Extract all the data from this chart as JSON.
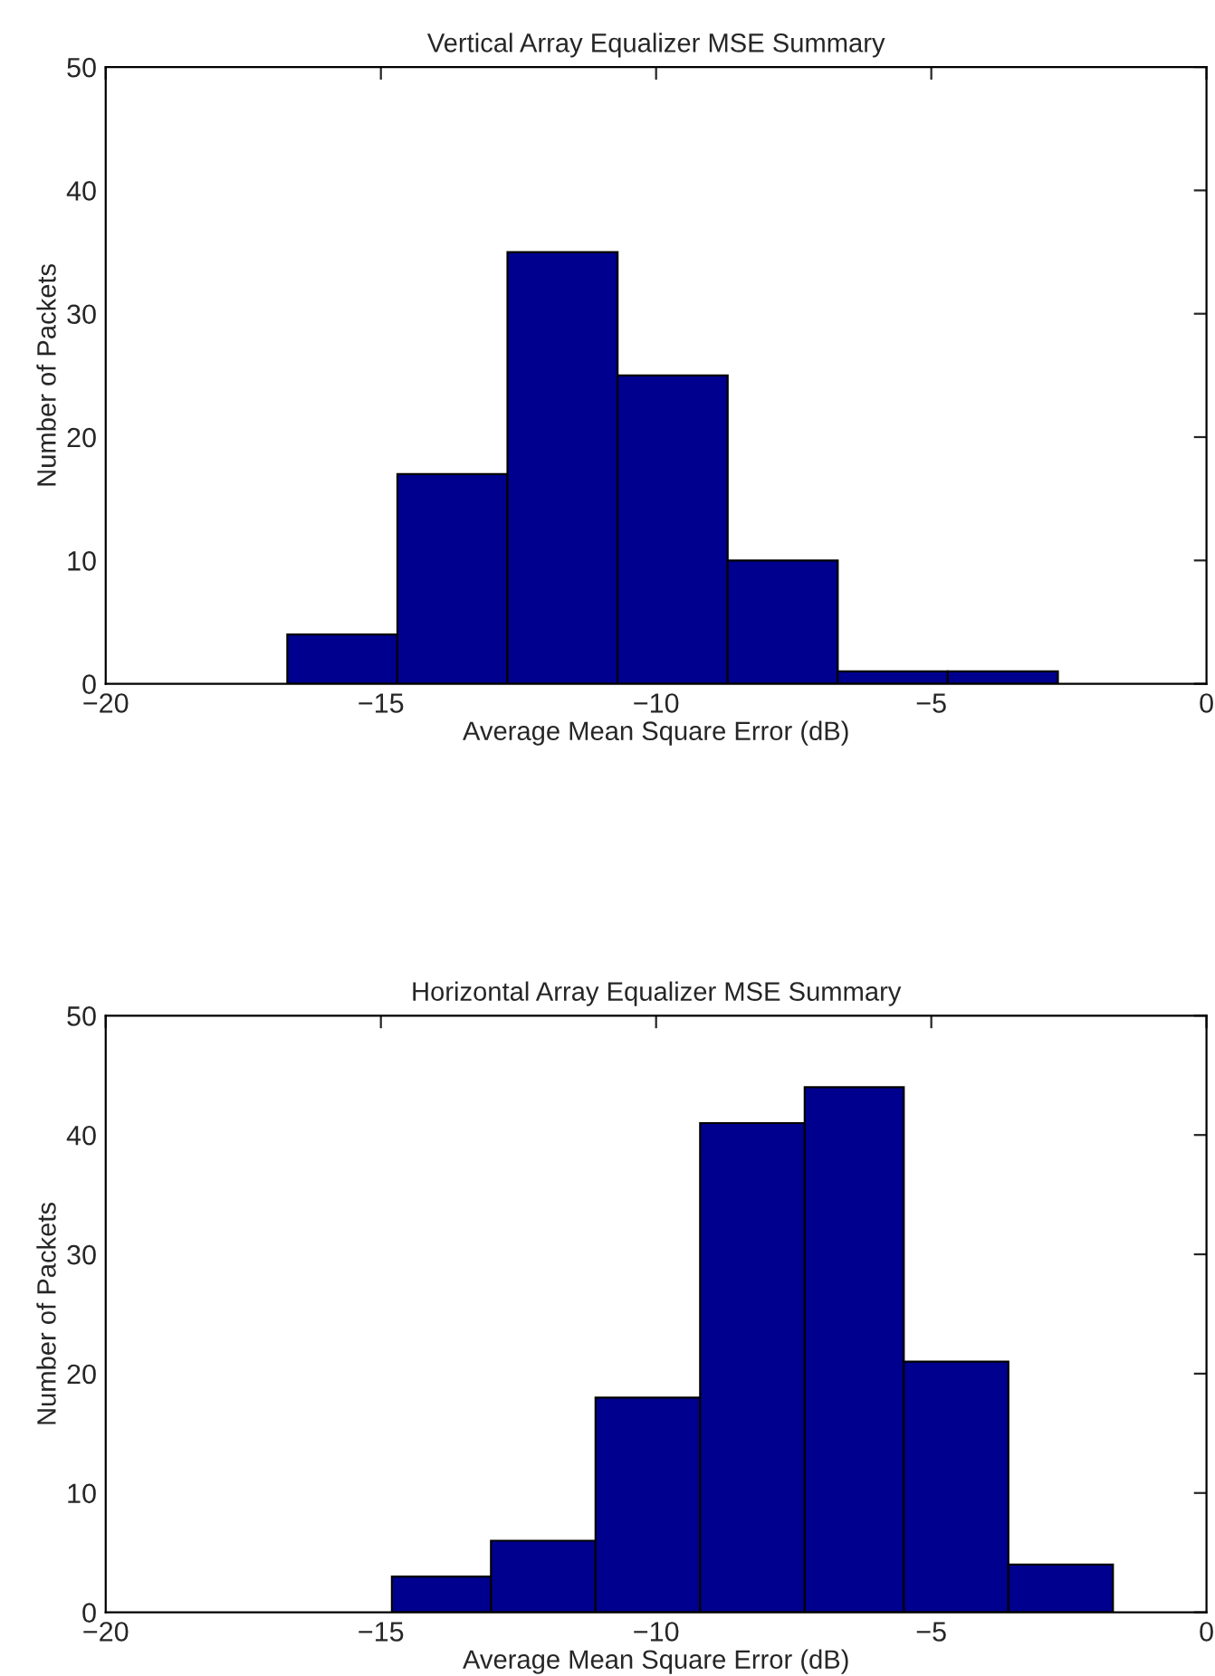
{
  "chart_data": [
    {
      "type": "histogram",
      "title": "Vertical Array Equalizer MSE Summary",
      "xlabel": "Average Mean Square Error (dB)",
      "ylabel": "Number of Packets",
      "color": "#00008f",
      "bins": [
        -16.7,
        -14.7,
        -12.7,
        -10.7,
        -8.7,
        -6.7,
        -4.7,
        -2.7
      ],
      "values": [
        4,
        17,
        35,
        25,
        10,
        1,
        1
      ],
      "xlim": [
        -20,
        0
      ],
      "xticks": [
        {
          "value": -20,
          "label": "−20"
        },
        {
          "value": -15,
          "label": "−15"
        },
        {
          "value": -10,
          "label": "−10"
        },
        {
          "value": -5,
          "label": "−5"
        },
        0
      ],
      "ylim": [
        0,
        50
      ],
      "yticks": [
        0,
        10,
        20,
        30,
        40,
        50
      ],
      "grid": false
    },
    {
      "type": "histogram",
      "title": "Horizontal Array Equalizer MSE Summary",
      "xlabel": "Average Mean Square Error (dB)",
      "ylabel": "Number of Packets",
      "color": "#00008f",
      "bins": [
        -14.8,
        -13.0,
        -11.1,
        -9.2,
        -7.3,
        -5.5,
        -3.6,
        -1.7
      ],
      "values": [
        3,
        6,
        18,
        41,
        44,
        21,
        4
      ],
      "xlim": [
        -20,
        0
      ],
      "xticks": [
        {
          "value": -20,
          "label": "−20"
        },
        {
          "value": -15,
          "label": "−15"
        },
        {
          "value": -10,
          "label": "−10"
        },
        {
          "value": -5,
          "label": "−5"
        },
        0
      ],
      "ylim": [
        0,
        50
      ],
      "yticks": [
        0,
        10,
        20,
        30,
        40,
        50
      ],
      "grid": false
    }
  ]
}
